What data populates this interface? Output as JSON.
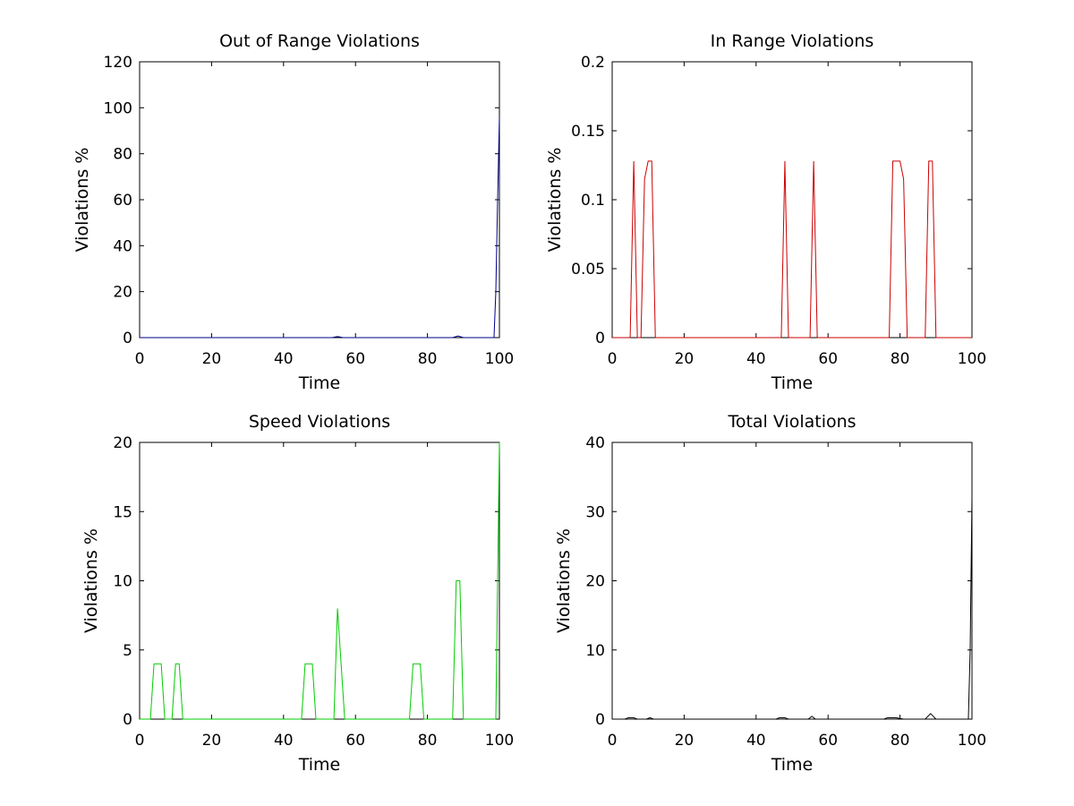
{
  "chart_data": [
    {
      "type": "line",
      "title": "Out of Range Violations",
      "xlabel": "Time",
      "ylabel": "Violations %",
      "xlim": [
        0,
        100
      ],
      "ylim": [
        0,
        120
      ],
      "xticks": [
        0,
        20,
        40,
        60,
        80,
        100
      ],
      "yticks": [
        0,
        20,
        40,
        60,
        80,
        100,
        120
      ],
      "color": "#00008b",
      "series": [
        {
          "x": [
            0,
            53.5,
            55,
            56.5,
            87,
            88.5,
            90,
            98.5,
            99,
            99.5,
            100
          ],
          "y": [
            0,
            0,
            0.5,
            0,
            0,
            0.7,
            0,
            0,
            20,
            60,
            96
          ]
        }
      ]
    },
    {
      "type": "line",
      "title": "In Range Violations",
      "xlabel": "Time",
      "ylabel": "Violations %",
      "xlim": [
        0,
        100
      ],
      "ylim": [
        0,
        0.2
      ],
      "xticks": [
        0,
        20,
        40,
        60,
        80,
        100
      ],
      "yticks": [
        0,
        0.05,
        0.1,
        0.15,
        0.2
      ],
      "ytick_labels": [
        "0",
        "0.05",
        "0.1",
        "0.15",
        "0.2"
      ],
      "color": "#cc0000",
      "series": [
        {
          "x": [
            0,
            5,
            6,
            7,
            8,
            9,
            10,
            11,
            12,
            47,
            48,
            49,
            55,
            56,
            57,
            77,
            78,
            80,
            81,
            82,
            87,
            88,
            89,
            90,
            100
          ],
          "y": [
            0,
            0,
            0.128,
            0,
            0,
            0.115,
            0.128,
            0.128,
            0,
            0,
            0.128,
            0,
            0,
            0.128,
            0,
            0,
            0.128,
            0.128,
            0.115,
            0,
            0,
            0.128,
            0.128,
            0,
            0
          ]
        }
      ]
    },
    {
      "type": "line",
      "title": "Speed Violations",
      "xlabel": "Time",
      "ylabel": "Violations %",
      "xlim": [
        0,
        100
      ],
      "ylim": [
        0,
        20
      ],
      "xticks": [
        0,
        20,
        40,
        60,
        80,
        100
      ],
      "yticks": [
        0,
        5,
        10,
        15,
        20
      ],
      "color": "#00cc00",
      "series": [
        {
          "x": [
            0,
            3,
            4,
            6,
            7,
            9,
            10,
            11,
            12,
            45,
            46,
            48,
            49,
            54,
            55,
            56,
            57,
            75,
            76,
            78,
            79,
            87,
            88,
            89,
            90,
            99,
            100
          ],
          "y": [
            0,
            0,
            4,
            4,
            0,
            0,
            4,
            4,
            0,
            0,
            4,
            4,
            0,
            0,
            8,
            4,
            0,
            0,
            4,
            4,
            0,
            0,
            10,
            10,
            0,
            0,
            20
          ]
        }
      ]
    },
    {
      "type": "line",
      "title": "Total Violations",
      "xlabel": "Time",
      "ylabel": "Violations %",
      "xlim": [
        0,
        100
      ],
      "ylim": [
        0,
        40
      ],
      "xticks": [
        0,
        20,
        40,
        60,
        80,
        100
      ],
      "yticks": [
        0,
        10,
        20,
        30,
        40
      ],
      "color": "#000000",
      "series": [
        {
          "x": [
            0,
            3.5,
            4.5,
            6,
            7,
            9.5,
            10.5,
            11.5,
            45.5,
            46.5,
            48,
            49,
            54.5,
            55.5,
            56.5,
            75.5,
            76.5,
            79,
            80,
            81,
            87,
            88.5,
            90,
            99,
            99.5,
            100
          ],
          "y": [
            0,
            0,
            0.2,
            0.2,
            0,
            0,
            0.2,
            0,
            0,
            0.2,
            0.2,
            0,
            0,
            0.4,
            0,
            0,
            0.2,
            0.2,
            0.1,
            0,
            0,
            0.8,
            0,
            0,
            10,
            32
          ]
        }
      ]
    }
  ]
}
